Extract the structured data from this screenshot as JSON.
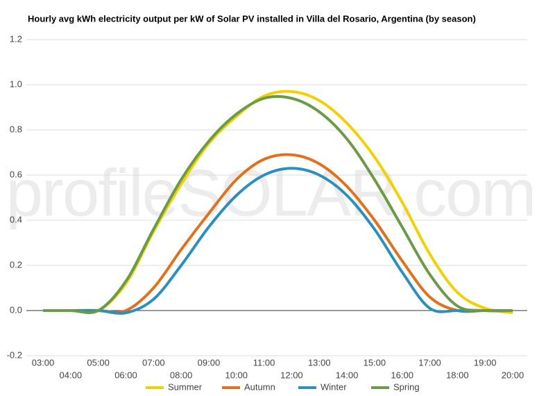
{
  "chart_data": {
    "type": "line",
    "title": "Hourly avg kWh electricity output per kW of Solar PV installed in Villa del Rosario, Argentina (by season)",
    "watermark": "profileSOLAR.com",
    "categories": [
      "03:00",
      "04:00",
      "05:00",
      "06:00",
      "07:00",
      "08:00",
      "09:00",
      "10:00",
      "11:00",
      "12:00",
      "13:00",
      "14:00",
      "15:00",
      "16:00",
      "17:00",
      "18:00",
      "19:00",
      "20:00"
    ],
    "series": [
      {
        "name": "Summer",
        "color": "#f2d100",
        "values": [
          0,
          0,
          0,
          0.12,
          0.35,
          0.56,
          0.74,
          0.86,
          0.95,
          0.97,
          0.93,
          0.83,
          0.68,
          0.48,
          0.25,
          0.08,
          0.01,
          -0.01
        ]
      },
      {
        "name": "Autumn",
        "color": "#e2711d",
        "values": [
          0,
          0,
          0,
          0,
          0.1,
          0.27,
          0.43,
          0.58,
          0.67,
          0.69,
          0.65,
          0.55,
          0.4,
          0.22,
          0.06,
          0,
          0,
          0
        ]
      },
      {
        "name": "Winter",
        "color": "#2b8fc0",
        "values": [
          0,
          0,
          0,
          -0.01,
          0.05,
          0.2,
          0.37,
          0.51,
          0.6,
          0.63,
          0.6,
          0.51,
          0.36,
          0.17,
          0.01,
          0,
          0,
          0
        ]
      },
      {
        "name": "Spring",
        "color": "#6b9a48",
        "values": [
          0,
          0,
          0,
          0.13,
          0.36,
          0.58,
          0.75,
          0.87,
          0.94,
          0.94,
          0.88,
          0.76,
          0.58,
          0.37,
          0.16,
          0.02,
          0,
          0
        ]
      }
    ],
    "ylim": [
      -0.2,
      1.2
    ],
    "yticks": [
      -0.2,
      {
        "value": 0,
        "label": "0.0"
      },
      0.2,
      0.4,
      0.6,
      0.8,
      {
        "value": 1,
        "label": "1.0"
      },
      1.2
    ],
    "grid": true,
    "legend": "bottom"
  }
}
